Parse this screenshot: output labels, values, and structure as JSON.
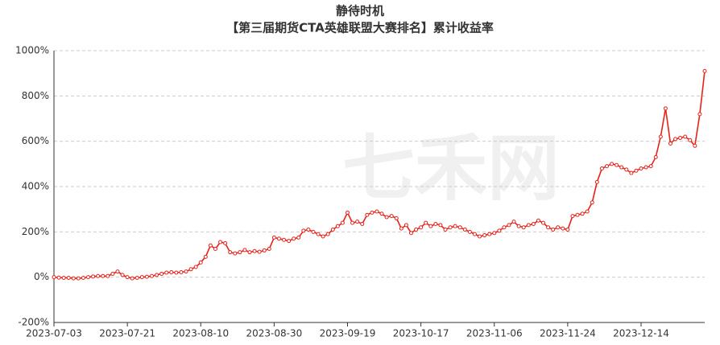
{
  "chart_data": {
    "type": "line",
    "title": "静待时机",
    "subtitle": "【第三届期货CTA英雄联盟大赛排名】累计收益率",
    "watermark": "七禾网",
    "color": "#e8211a",
    "grid": true,
    "categories": [
      "2023-07-03",
      null,
      null,
      null,
      null,
      null,
      null,
      null,
      null,
      null,
      null,
      null,
      null,
      null,
      null,
      "2023-07-21",
      null,
      null,
      null,
      null,
      null,
      null,
      null,
      null,
      null,
      null,
      null,
      null,
      null,
      null,
      "2023-08-10",
      null,
      null,
      null,
      null,
      null,
      null,
      null,
      null,
      null,
      null,
      null,
      null,
      null,
      null,
      "2023-08-30",
      null,
      null,
      null,
      null,
      null,
      null,
      null,
      null,
      null,
      null,
      null,
      null,
      null,
      null,
      "2023-09-19",
      null,
      null,
      null,
      null,
      null,
      null,
      null,
      null,
      null,
      null,
      null,
      null,
      null,
      null,
      "2023-10-17",
      null,
      null,
      null,
      null,
      null,
      null,
      null,
      null,
      null,
      null,
      null,
      null,
      null,
      null,
      "2023-11-06",
      null,
      null,
      null,
      null,
      null,
      null,
      null,
      null,
      null,
      null,
      null,
      null,
      null,
      null,
      "2023-11-24",
      null,
      null,
      null,
      null,
      null,
      null,
      null,
      null,
      null,
      null,
      null,
      null,
      null,
      null,
      "2023-12-14",
      null,
      null,
      null,
      null,
      null,
      null,
      null,
      null,
      null,
      null,
      null,
      null,
      null
    ],
    "values": [
      0,
      -2,
      -3,
      -3,
      -5,
      -5,
      -3,
      0,
      3,
      5,
      5,
      5,
      15,
      25,
      10,
      0,
      -5,
      -3,
      0,
      2,
      5,
      10,
      15,
      20,
      22,
      20,
      22,
      25,
      35,
      45,
      65,
      90,
      140,
      125,
      155,
      150,
      110,
      105,
      110,
      120,
      110,
      115,
      112,
      118,
      125,
      175,
      170,
      165,
      160,
      170,
      175,
      205,
      210,
      200,
      190,
      180,
      190,
      210,
      225,
      240,
      285,
      240,
      245,
      235,
      275,
      285,
      290,
      280,
      265,
      270,
      260,
      215,
      230,
      195,
      210,
      220,
      240,
      225,
      235,
      230,
      210,
      220,
      225,
      220,
      210,
      200,
      190,
      180,
      185,
      190,
      195,
      205,
      220,
      230,
      245,
      225,
      220,
      230,
      235,
      250,
      240,
      220,
      210,
      220,
      215,
      210,
      270,
      275,
      280,
      290,
      330,
      420,
      480,
      490,
      500,
      495,
      485,
      475,
      460,
      470,
      480,
      485,
      490,
      530,
      620,
      745,
      590,
      610,
      615,
      620,
      605,
      580,
      720,
      910
    ],
    "ylim": [
      -200,
      1000
    ],
    "yticks": [
      {
        "value": -200,
        "label": "-200%"
      },
      {
        "value": 0,
        "label": "0%"
      },
      {
        "value": 200,
        "label": "200%"
      },
      {
        "value": 400,
        "label": "400%"
      },
      {
        "value": 600,
        "label": "600%"
      },
      {
        "value": 800,
        "label": "800%"
      },
      {
        "value": 1000,
        "label": "1000%"
      }
    ]
  }
}
